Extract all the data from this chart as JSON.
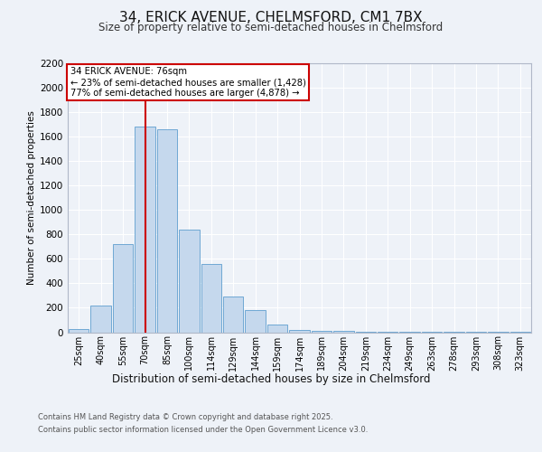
{
  "title1": "34, ERICK AVENUE, CHELMSFORD, CM1 7BX",
  "title2": "Size of property relative to semi-detached houses in Chelmsford",
  "xlabel": "Distribution of semi-detached houses by size in Chelmsford",
  "ylabel": "Number of semi-detached properties",
  "categories": [
    "25sqm",
    "40sqm",
    "55sqm",
    "70sqm",
    "85sqm",
    "100sqm",
    "114sqm",
    "129sqm",
    "144sqm",
    "159sqm",
    "174sqm",
    "189sqm",
    "204sqm",
    "219sqm",
    "234sqm",
    "249sqm",
    "263sqm",
    "278sqm",
    "293sqm",
    "308sqm",
    "323sqm"
  ],
  "values": [
    25,
    220,
    720,
    1680,
    1660,
    840,
    560,
    295,
    180,
    60,
    20,
    10,
    8,
    5,
    5,
    3,
    2,
    2,
    1,
    1,
    1
  ],
  "bar_color": "#c5d8ed",
  "bar_edge_color": "#6fa8d4",
  "vline_x": 3,
  "vline_color": "#cc0000",
  "annotation_title": "34 ERICK AVENUE: 76sqm",
  "annotation_line1": "← 23% of semi-detached houses are smaller (1,428)",
  "annotation_line2": "77% of semi-detached houses are larger (4,878) →",
  "annotation_box_color": "#cc0000",
  "ylim": [
    0,
    2200
  ],
  "yticks": [
    0,
    200,
    400,
    600,
    800,
    1000,
    1200,
    1400,
    1600,
    1800,
    2000,
    2200
  ],
  "footer_line1": "Contains HM Land Registry data © Crown copyright and database right 2025.",
  "footer_line2": "Contains public sector information licensed under the Open Government Licence v3.0.",
  "bg_color": "#eef2f8",
  "plot_bg_color": "#eef2f8",
  "title1_fontsize": 11,
  "title2_fontsize": 8.5,
  "xlabel_fontsize": 8.5,
  "grid_color": "#ffffff"
}
